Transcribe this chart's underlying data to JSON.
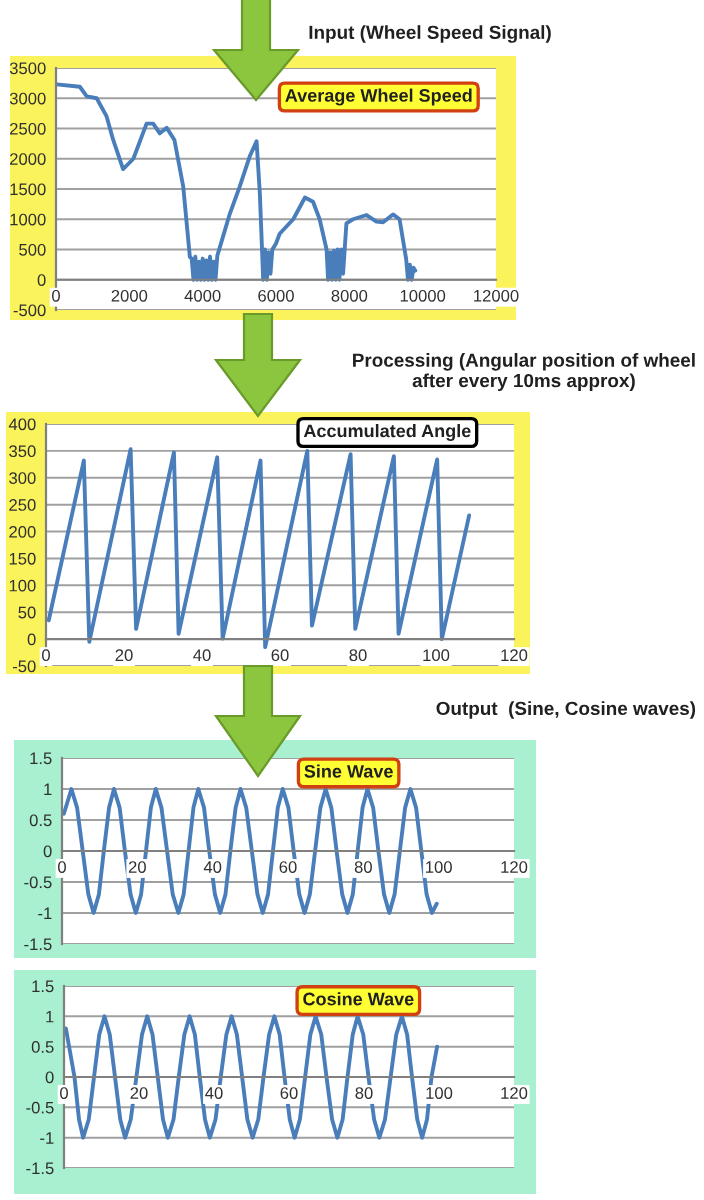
{
  "chart_data": [
    {
      "type": "line",
      "title": "Average Wheel Speed",
      "subtitle": "Input (Wheel Speed Signal)",
      "series": [
        {
          "color": "#4a7ebb",
          "x": [
            20,
            650,
            840,
            1110,
            1380,
            1560,
            1830,
            2110,
            2470,
            2650,
            2830,
            3020,
            3230,
            3470,
            3650,
            3700,
            3750,
            3800,
            3850,
            3900,
            3950,
            4000,
            4050,
            4100,
            4150,
            4200,
            4250,
            4300,
            4350,
            4400,
            4470,
            4740,
            5010,
            5290,
            5470,
            5560,
            5600,
            5650,
            5700,
            5750,
            5800,
            5850,
            5900,
            6000,
            6100,
            6470,
            6790,
            7010,
            7190,
            7380,
            7420,
            7480,
            7530,
            7580,
            7630,
            7680,
            7730,
            7780,
            7830,
            7920,
            8100,
            8470,
            8740,
            8920,
            9190,
            9370,
            9550,
            9600,
            9650,
            9700,
            9750,
            9800
          ],
          "values": [
            3230,
            3190,
            3030,
            3000,
            2700,
            2310,
            1830,
            2000,
            2580,
            2580,
            2420,
            2510,
            2310,
            1540,
            380,
            350,
            0,
            380,
            0,
            300,
            0,
            350,
            0,
            320,
            0,
            380,
            0,
            300,
            0,
            400,
            540,
            1090,
            1540,
            2050,
            2290,
            1420,
            800,
            0,
            500,
            0,
            450,
            100,
            500,
            600,
            760,
            1000,
            1360,
            1290,
            1000,
            500,
            0,
            450,
            0,
            480,
            0,
            500,
            0,
            500,
            100,
            930,
            1000,
            1070,
            960,
            950,
            1080,
            1000,
            340,
            0,
            250,
            0,
            200,
            150
          ]
        }
      ],
      "xlim": [
        0,
        12000
      ],
      "xticks": [
        0,
        2000,
        4000,
        6000,
        8000,
        10000,
        12000
      ],
      "ylim": [
        -500,
        3500
      ],
      "yticks": [
        -500,
        0,
        500,
        1000,
        1500,
        2000,
        2500,
        3000,
        3500
      ],
      "grid": "y"
    },
    {
      "type": "line",
      "title": "Accumulated Angle",
      "subtitle": "Processing (Angular position of wheel\nafter every 10ms approx)",
      "series": [
        {
          "color": "#4a7ebb",
          "x": [
            0.7,
            9.7,
            11.1,
            21.7,
            23.1,
            32.8,
            34,
            43.9,
            45.3,
            55,
            56.2,
            67,
            68.2,
            78.1,
            79.3,
            89.2,
            90.4,
            100.3,
            101.5,
            108.5
          ],
          "values": [
            35,
            332,
            -5,
            353,
            19,
            347,
            10,
            338,
            1,
            332,
            -15,
            350,
            25,
            344,
            19,
            340,
            10,
            334,
            0,
            230
          ]
        }
      ],
      "xlim": [
        0,
        120
      ],
      "xticks": [
        0,
        20,
        40,
        60,
        80,
        100,
        120
      ],
      "ylim": [
        -50,
        400
      ],
      "yticks": [
        -50,
        0,
        50,
        100,
        150,
        200,
        250,
        300,
        350,
        400
      ],
      "grid": "y"
    },
    {
      "type": "line",
      "title": "Sine Wave",
      "subtitle": "Output  (Sine, Cosine waves)",
      "series": [
        {
          "color": "#4a7ebb",
          "x": [
            0.5,
            2.5,
            4.0,
            5.5,
            7.0,
            8.4,
            9.8,
            11.1,
            12.5,
            13.8,
            15.3,
            16.7,
            18.2,
            19.6,
            21.0,
            22.3,
            23.6,
            24.9,
            26.4,
            27.9,
            29.4,
            30.9,
            32.3,
            33.6,
            34.9,
            36.2,
            37.7,
            39.1,
            40.6,
            42.0,
            43.4,
            44.7,
            46.1,
            47.4,
            48.9,
            50.4,
            51.9,
            53.3,
            54.7,
            56.0,
            57.3,
            58.6,
            60.1,
            61.5,
            63.0,
            64.4,
            65.8,
            67.2,
            68.6,
            70.0,
            71.5,
            72.9,
            74.4,
            75.8,
            77.2,
            78.5,
            79.8,
            81.1,
            82.6,
            84.0,
            85.5,
            86.9,
            88.3,
            89.7,
            91.1,
            92.5,
            94.0,
            95.4,
            96.8,
            98.2,
            99.5
          ],
          "values": [
            0.6,
            1,
            0.7,
            0,
            -0.7,
            -1,
            -0.7,
            0,
            0.7,
            1,
            0.7,
            0,
            -0.7,
            -1,
            -0.7,
            0,
            0.7,
            1,
            0.7,
            0,
            -0.7,
            -1,
            -0.7,
            0,
            0.7,
            1,
            0.7,
            0,
            -0.7,
            -1,
            -0.7,
            0,
            0.7,
            1,
            0.7,
            0,
            -0.7,
            -1,
            -0.7,
            0,
            0.7,
            1,
            0.7,
            0,
            -0.7,
            -1,
            -0.7,
            0,
            0.7,
            1,
            0.7,
            0,
            -0.7,
            -1,
            -0.7,
            0,
            0.7,
            1,
            0.7,
            0,
            -0.7,
            -1,
            -0.7,
            0,
            0.7,
            1,
            0.7,
            0,
            -0.7,
            -1,
            -0.85
          ]
        }
      ],
      "xlim": [
        0,
        120
      ],
      "xticks": [
        0,
        20,
        40,
        60,
        80,
        100,
        120
      ],
      "ylim": [
        -1.5,
        1.5
      ],
      "yticks": [
        -1.5,
        -1,
        -0.5,
        0,
        0.5,
        1,
        1.5
      ],
      "grid": "y"
    },
    {
      "type": "line",
      "title": "Cosine Wave",
      "series": [
        {
          "color": "#4a7ebb",
          "x": [
            0.5,
            2.8,
            4.0,
            5.1,
            6.6,
            8.0,
            9.4,
            10.8,
            12.2,
            13.6,
            15.0,
            16.3,
            17.8,
            19.3,
            20.8,
            22.2,
            23.6,
            25.0,
            26.4,
            27.7,
            29.2,
            30.6,
            32.1,
            33.5,
            34.9,
            36.2,
            37.6,
            38.9,
            40.4,
            41.8,
            43.3,
            44.7,
            46.1,
            47.5,
            48.9,
            50.3,
            51.8,
            53.2,
            54.7,
            56.1,
            57.5,
            58.8,
            60.2,
            61.5,
            62.9,
            64.3,
            65.7,
            67.1,
            68.6,
            70.0,
            71.5,
            72.9,
            74.3,
            75.6,
            77.0,
            78.3,
            79.8,
            81.2,
            82.7,
            84.1,
            85.6,
            87.1,
            88.6,
            90.1,
            91.5,
            92.8,
            94.2,
            95.5,
            96.8,
            98.0,
            99.5
          ],
          "values": [
            0.8,
            0,
            -0.7,
            -1,
            -0.7,
            0,
            0.7,
            1,
            0.7,
            0,
            -0.7,
            -1,
            -0.7,
            0,
            0.7,
            1,
            0.7,
            0,
            -0.7,
            -1,
            -0.7,
            0,
            0.7,
            1,
            0.7,
            0,
            -0.7,
            -1,
            -0.7,
            0,
            0.7,
            1,
            0.7,
            0,
            -0.7,
            -1,
            -0.7,
            0,
            0.7,
            1,
            0.7,
            0,
            -0.7,
            -1,
            -0.7,
            0,
            0.7,
            1,
            0.7,
            0,
            -0.7,
            -1,
            -0.7,
            0,
            0.7,
            1,
            0.7,
            0,
            -0.7,
            -1,
            -0.7,
            0,
            0.7,
            1,
            0.7,
            0,
            -0.7,
            -1,
            -0.7,
            0,
            0.5
          ]
        }
      ],
      "xlim": [
        0,
        120
      ],
      "xticks": [
        0,
        20,
        40,
        60,
        80,
        100,
        120
      ],
      "ylim": [
        -1.5,
        1.5
      ],
      "yticks": [
        -1.5,
        -1,
        -0.5,
        0,
        0.5,
        1,
        1.5
      ],
      "grid": "y"
    }
  ]
}
